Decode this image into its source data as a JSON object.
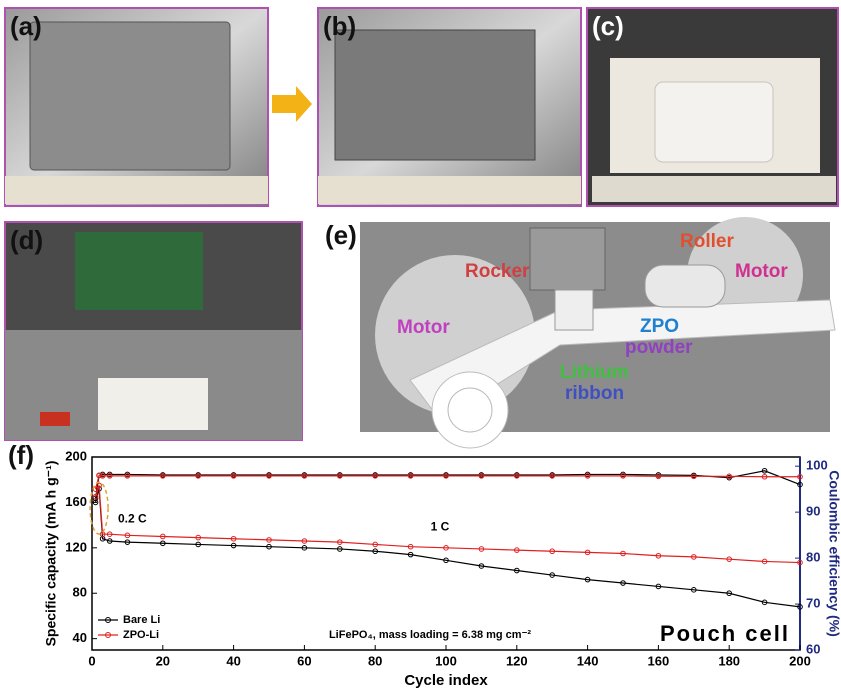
{
  "panels": {
    "a": "(a)",
    "b": "(b)",
    "c": "(c)",
    "d": "(d)",
    "e": "(e)",
    "f": "(f)"
  },
  "diagram": {
    "rocker": "Rocker",
    "roller": "Roller",
    "motor_left": "Motor",
    "motor_right": "Motor",
    "zpo_line1": "ZPO",
    "zpo_line2": "powder",
    "lithium_line1": "Lithium",
    "lithium_line2": "ribbon"
  },
  "chart_data": {
    "type": "line",
    "x_label": "Cycle index",
    "y_label": "Specific capacity (mA h g⁻¹)",
    "y2_label": "Coulombic efficiency (%)",
    "annotations": [
      "0.2 C",
      "1 C",
      "LiFePO₄, mass loading = 6.38 mg cm⁻²",
      "Pouch cell"
    ],
    "x": [
      1,
      2,
      3,
      5,
      10,
      20,
      30,
      40,
      50,
      60,
      70,
      80,
      90,
      100,
      110,
      120,
      130,
      140,
      150,
      160,
      170,
      180,
      190,
      200
    ],
    "series": [
      {
        "name": "Bare Li",
        "color": "#000000",
        "values": [
          160,
          172,
          128,
          126,
          125,
          124,
          123,
          122,
          121,
          120,
          119,
          117,
          114,
          109,
          104,
          100,
          96,
          92,
          89,
          86,
          83,
          80,
          72,
          68
        ],
        "efficiency": [
          93,
          98,
          98.2,
          98.2,
          98.2,
          98.1,
          98.1,
          98.1,
          98.1,
          98.1,
          98.1,
          98.1,
          98.1,
          98.1,
          98.1,
          98.1,
          98.1,
          98.2,
          98.2,
          98.1,
          98,
          97.5,
          99,
          96
        ]
      },
      {
        "name": "ZPO-Li",
        "color": "#e02020",
        "values": [
          165,
          175,
          132,
          132,
          131,
          130,
          129,
          128,
          127,
          126,
          125,
          123,
          121,
          120,
          119,
          118,
          117,
          116,
          115,
          113,
          112,
          110,
          108,
          107
        ],
        "efficiency": [
          95,
          98,
          97.9,
          97.9,
          97.9,
          97.9,
          97.9,
          97.9,
          97.9,
          97.9,
          97.9,
          97.9,
          97.9,
          97.9,
          97.9,
          97.9,
          97.9,
          97.9,
          97.9,
          97.8,
          97.8,
          97.8,
          97.7,
          97.7
        ]
      }
    ],
    "xlim": [
      0,
      200
    ],
    "xticks": [
      0,
      20,
      40,
      60,
      80,
      100,
      120,
      140,
      160,
      180,
      200
    ],
    "ylim": [
      30,
      200
    ],
    "yticks": [
      40,
      80,
      120,
      160,
      200
    ],
    "y2lim": [
      60,
      102
    ],
    "y2ticks": [
      60,
      70,
      80,
      90,
      100
    ],
    "y2_color": "#1f2a80",
    "legend": "lower-left"
  }
}
